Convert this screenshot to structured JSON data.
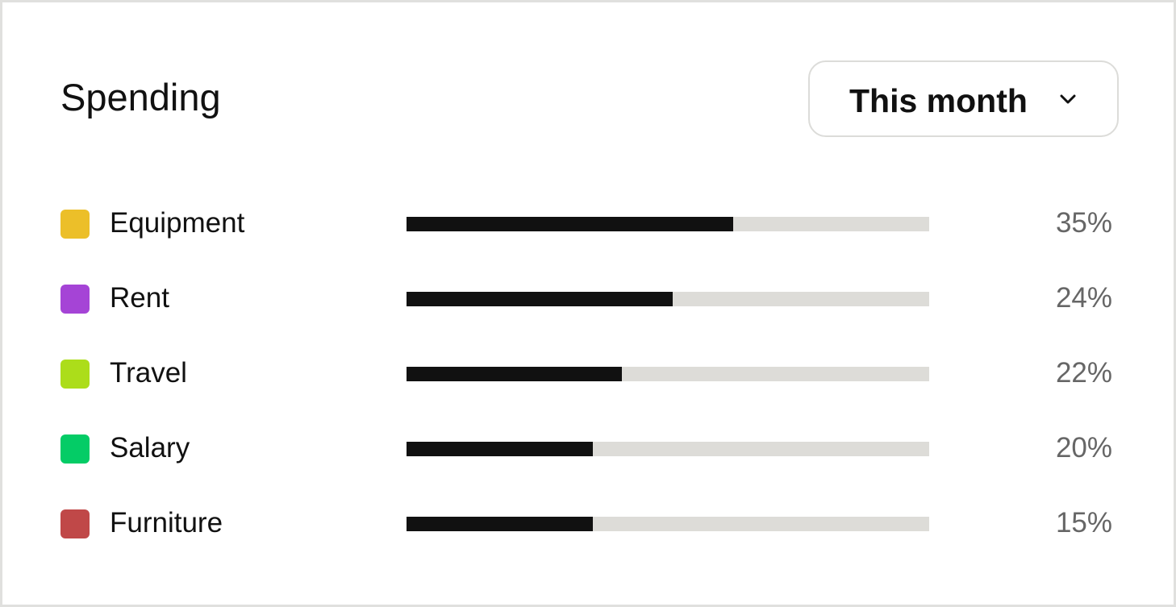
{
  "header": {
    "title": "Spending",
    "period": {
      "selected": "This month",
      "icon": "chevron-down-icon"
    }
  },
  "categories": [
    {
      "label": "Equipment",
      "percent_label": "35%",
      "bar_fraction": 0.625,
      "color": "#ecbf29"
    },
    {
      "label": "Rent",
      "percent_label": "24%",
      "bar_fraction": 0.51,
      "color": "#a544d6"
    },
    {
      "label": "Travel",
      "percent_label": "22%",
      "bar_fraction": 0.412,
      "color": "#acdd1a"
    },
    {
      "label": "Salary",
      "percent_label": "20%",
      "bar_fraction": 0.357,
      "color": "#04cc66"
    },
    {
      "label": "Furniture",
      "percent_label": "15%",
      "bar_fraction": 0.357,
      "color": "#c04848"
    }
  ]
}
